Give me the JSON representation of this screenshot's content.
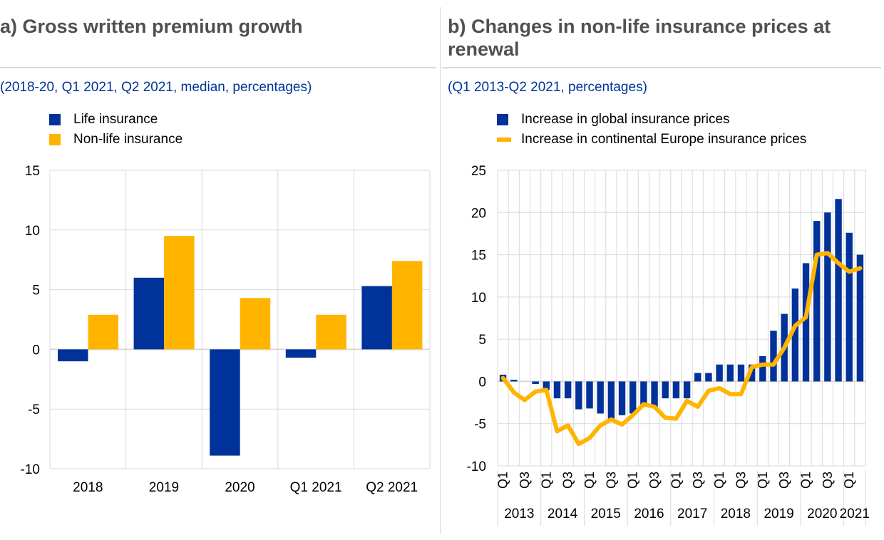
{
  "colors": {
    "life": "#003299",
    "nonlife": "#FFB400",
    "grid": "#d9d9d9"
  },
  "panel_a": {
    "title": "a) Gross written premium growth",
    "subtitle": "(2018-20, Q1 2021, Q2 2021, median, percentages)",
    "legend": [
      "Life insurance",
      "Non-life insurance"
    ]
  },
  "panel_b": {
    "title_line1": "b) Changes in non-life insurance prices at",
    "title_line2": "renewal",
    "subtitle": "(Q1 2013-Q2 2021, percentages)",
    "legend": [
      "Increase in global insurance prices",
      "Increase in continental Europe insurance prices"
    ]
  },
  "chart_data": [
    {
      "type": "bar",
      "categories": [
        "2018",
        "2019",
        "2020",
        "Q1 2021",
        "Q2 2021"
      ],
      "series": [
        {
          "name": "Life insurance",
          "values": [
            -1.0,
            6.0,
            -8.9,
            -0.7,
            5.3
          ]
        },
        {
          "name": "Non-life insurance",
          "values": [
            2.9,
            9.5,
            4.3,
            2.9,
            7.4
          ]
        }
      ],
      "ylim": [
        -10,
        15
      ],
      "yticks": [
        15,
        10,
        5,
        0,
        -5,
        -10
      ],
      "grid": true,
      "legend_position": "top-left"
    },
    {
      "type": "bar",
      "quarter_labels": [
        "Q1",
        "",
        "Q3",
        "",
        "Q1",
        "",
        "Q3",
        "",
        "Q1",
        "",
        "Q3",
        "",
        "Q1",
        "",
        "Q3",
        "",
        "Q1",
        "",
        "Q3",
        "",
        "Q1",
        "",
        "Q3",
        "",
        "Q1",
        "",
        "Q3",
        "",
        "Q1",
        "",
        "Q3",
        "",
        "Q1",
        ""
      ],
      "years": [
        "2013",
        "2014",
        "2015",
        "2016",
        "2017",
        "2018",
        "2019",
        "2020",
        "2021"
      ],
      "series": [
        {
          "name": "Increase in global insurance prices",
          "kind": "bar",
          "values": [
            0.8,
            0.2,
            0,
            -0.3,
            -1.0,
            -2.0,
            -2.0,
            -3.3,
            -3.2,
            -3.8,
            -4.6,
            -4.0,
            -3.8,
            -3.0,
            -3.0,
            -2.0,
            -2.0,
            -2.0,
            1.0,
            1.0,
            2.0,
            2.0,
            2.0,
            2.0,
            3.0,
            6.0,
            8.0,
            11.0,
            14.0,
            19.0,
            20.0,
            21.6,
            17.6,
            15.0
          ]
        },
        {
          "name": "Increase in continental Europe insurance prices",
          "kind": "line",
          "values": [
            0.4,
            -1.3,
            -2.2,
            -1.2,
            -1.0,
            -5.9,
            -5.2,
            -7.4,
            -6.7,
            -5.2,
            -4.5,
            -5.1,
            -4.0,
            -2.7,
            -3.0,
            -4.3,
            -4.4,
            -2.3,
            -3.0,
            -1.1,
            -0.8,
            -1.5,
            -1.5,
            1.7,
            2.0,
            2.0,
            4.0,
            6.6,
            7.6,
            15.0,
            15.2,
            14.0,
            13.0,
            13.4
          ]
        }
      ],
      "ylim": [
        -10,
        25
      ],
      "yticks": [
        25,
        20,
        15,
        10,
        5,
        0,
        -5,
        -10
      ],
      "grid": true,
      "legend_position": "top-left"
    }
  ]
}
